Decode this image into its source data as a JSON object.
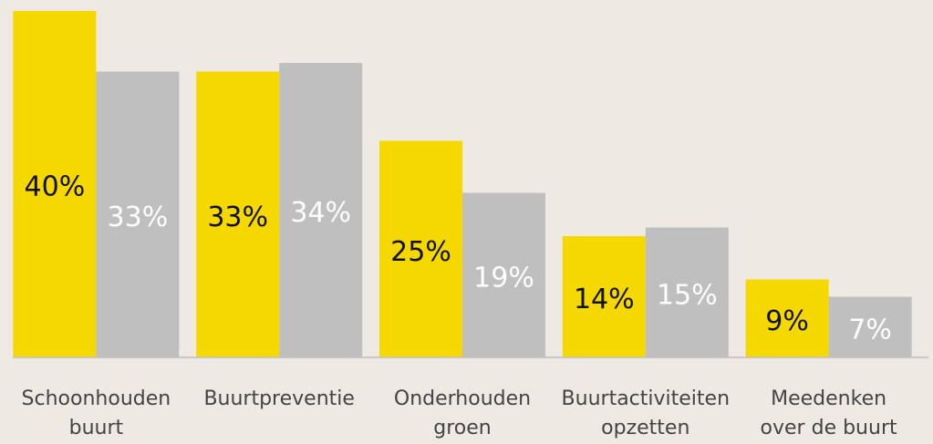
{
  "chart_data": {
    "type": "bar",
    "categories": [
      "Schoonhouden\nbuurt",
      "Buurtpreventie",
      "Onderhouden\ngroen",
      "Buurtactiviteiten\nopzetten",
      "Meedenken\nover de buurt"
    ],
    "series": [
      {
        "color": "#f5d800",
        "values": [
          40,
          33,
          25,
          14,
          9
        ],
        "value_labels": [
          "40%",
          "33%",
          "25%",
          "14%",
          "9%"
        ]
      },
      {
        "color": "#bfbfbf",
        "values": [
          33,
          34,
          19,
          15,
          7
        ],
        "value_labels": [
          "33%",
          "34%",
          "19%",
          "15%",
          "7%"
        ]
      }
    ],
    "ylim": [
      0,
      40
    ]
  }
}
